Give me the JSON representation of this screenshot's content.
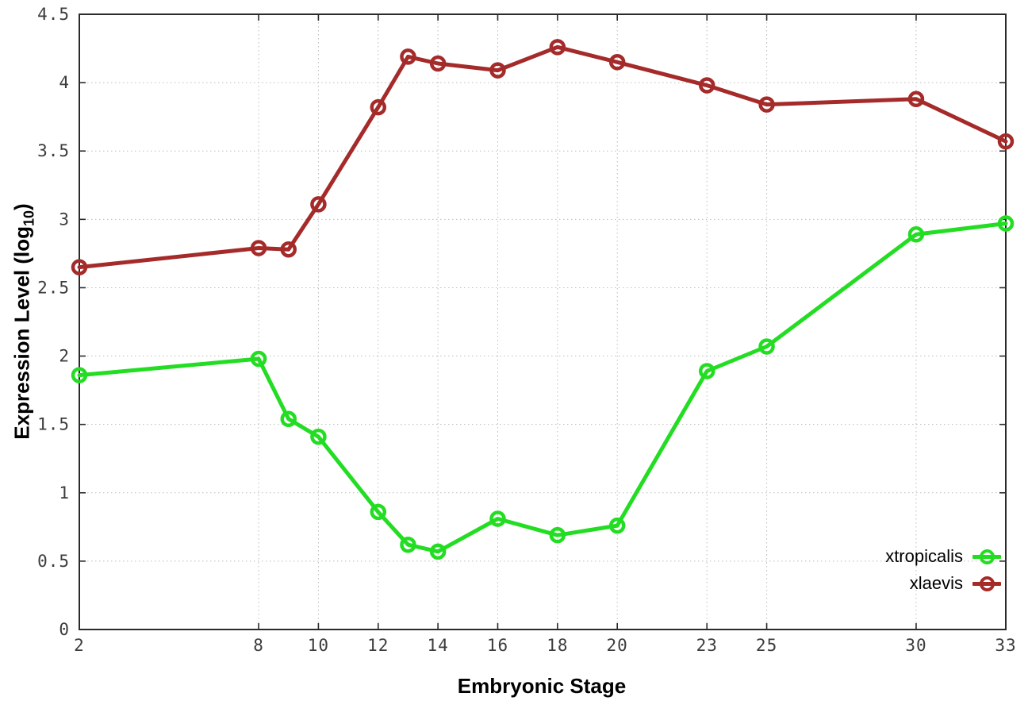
{
  "chart_data": {
    "type": "line",
    "title": "",
    "xlabel": "Embryonic Stage",
    "ylabel": "Expression Level (log10)",
    "ylabel_parts": {
      "prefix": "Expression Level (log",
      "sub": "10",
      "suffix": ")"
    },
    "x": [
      2,
      8,
      9,
      10,
      12,
      13,
      14,
      16,
      18,
      20,
      23,
      25,
      30,
      33
    ],
    "series": [
      {
        "name": "xtropicalis",
        "color": "#22dd22",
        "values": [
          1.86,
          1.98,
          1.54,
          1.41,
          0.86,
          0.62,
          0.57,
          0.81,
          0.69,
          0.76,
          1.89,
          2.07,
          2.89,
          2.97
        ]
      },
      {
        "name": "xlaevis",
        "color": "#a52a2a",
        "values": [
          2.65,
          2.79,
          2.78,
          3.11,
          3.82,
          4.19,
          4.14,
          4.09,
          4.26,
          4.15,
          3.98,
          3.84,
          3.88,
          3.57
        ]
      }
    ],
    "xlim": [
      2,
      33
    ],
    "ylim": [
      0,
      4.5
    ],
    "x_ticks": [
      2,
      8,
      10,
      12,
      14,
      16,
      18,
      20,
      23,
      25,
      30,
      33
    ],
    "y_ticks": [
      0,
      0.5,
      1,
      1.5,
      2,
      2.5,
      3,
      3.5,
      4,
      4.5
    ],
    "grid": true,
    "legend_position": "bottom-right",
    "marker": "open-circle",
    "colors": {
      "axis": "#2a2a2a",
      "grid": "#bdbdbd",
      "tick_label": "#3c3c3c"
    }
  }
}
